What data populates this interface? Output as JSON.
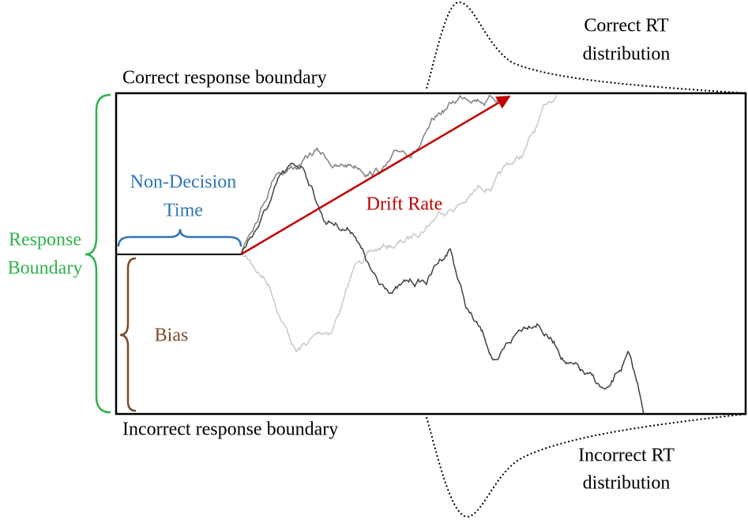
{
  "diagram": {
    "correct_boundary": "Correct response boundary",
    "incorrect_boundary": "Incorrect response boundary",
    "correct_distribution": [
      "Correct RT",
      "distribution"
    ],
    "incorrect_distribution": [
      "Incorrect RT",
      "distribution"
    ],
    "non_decision_time": [
      "Non-Decision",
      "Time"
    ],
    "drift_rate": "Drift Rate",
    "response_boundary": [
      "Response",
      "Boundary"
    ],
    "bias": "Bias"
  }
}
